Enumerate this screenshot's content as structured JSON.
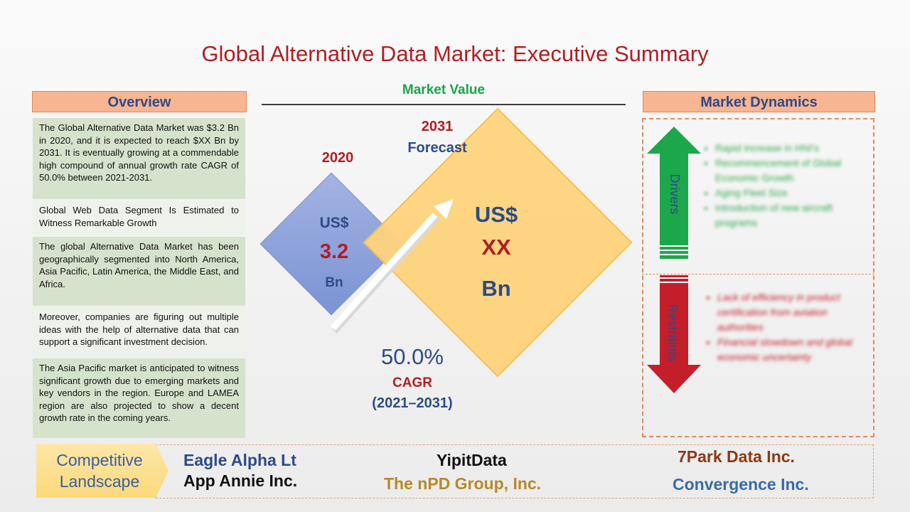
{
  "title": "Global Alternative Data Market: Executive Summary",
  "overview": {
    "header": "Overview",
    "paragraphs": [
      "The Global Alternative Data Market was $3.2 Bn in 2020, and it is expected to reach $XX Bn by 2031. It is eventually growing at a commendable high compound of annual growth rate CAGR of 50.0% between 2021-2031.",
      "Global Web Data Segment Is Estimated to Witness Remarkable Growth",
      "The global Alternative Data Market has been geographically segmented into North America, Asia Pacific, Latin America, the Middle East, and Africa.",
      "Moreover, companies are figuring out multiple ideas with the help of alternative data that can support a significant investment decision.",
      "The Asia Pacific market is anticipated to witness significant growth due to emerging markets and key vendors in the region. Europe and LAMEA region are also projected to show a decent growth rate in the coming years."
    ]
  },
  "market_value": {
    "header": "Market Value",
    "year_2020": "2020",
    "value_2020": {
      "currency": "US$",
      "amount": "3.2",
      "unit": "Bn"
    },
    "year_2031": "2031",
    "forecast_label": "Forecast",
    "value_2031": {
      "currency": "US$",
      "amount": "XX",
      "unit": "Bn"
    },
    "cagr_value": "50.0%",
    "cagr_label": "CAGR",
    "cagr_period": "(2021–2031)"
  },
  "market_dynamics": {
    "header": "Market Dynamics",
    "drivers_label": "Drivers",
    "drivers": [
      "Rapid increase in HNI's",
      "Recommencement of Global Economic Growth",
      "Aging Fleet Size",
      "Introduction of new aircraft programs"
    ],
    "restraints_label": "Restraints",
    "restraints": [
      "Lack of efficiency in product certification from aviation authorities",
      "Financial slowdown and global economic uncertainty"
    ]
  },
  "competitive_landscape": {
    "label_line1": "Competitive",
    "label_line2": "Landscape",
    "companies": [
      {
        "name": "Eagle Alpha Lt",
        "color": "#2e4a86"
      },
      {
        "name": "YipitData",
        "color": "#111111"
      },
      {
        "name": "7Park Data Inc.",
        "color": "#8a3a12"
      },
      {
        "name": "App Annie Inc.",
        "color": "#111111"
      },
      {
        "name": "The nPD Group, Inc.",
        "color": "#b8892a"
      },
      {
        "name": "Convergence Inc.",
        "color": "#3a6aaa"
      }
    ]
  },
  "colors": {
    "title": "#b01e24",
    "header_fill": "#f8b591",
    "header_text": "#2e4a86",
    "market_value_header": "#1aa54a",
    "value_red": "#b01e24",
    "value_blue": "#2e4a86",
    "drivers_green": "#1ca84a",
    "restraints_red": "#c41e2b"
  }
}
